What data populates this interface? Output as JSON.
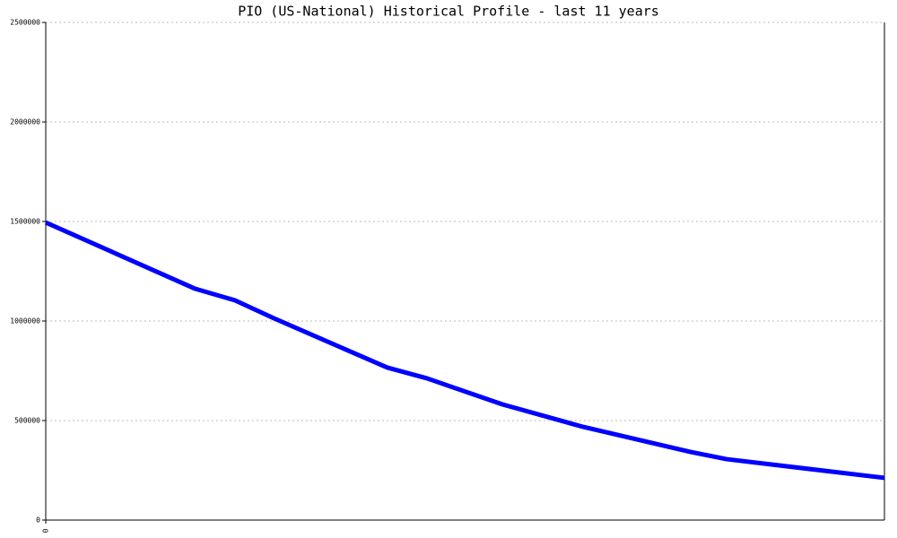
{
  "chart_data": {
    "type": "line",
    "title": "PIO (US-National) Historical Profile - last 11 years",
    "x": [
      0,
      1.96,
      2.48,
      2.99,
      4.48,
      5.0,
      5.99,
      7.05,
      8.46,
      8.93,
      11
    ],
    "series": [
      {
        "color": "#0000ff",
        "values": [
          1495000,
          1162000,
          1104000,
          1014000,
          766000,
          712000,
          581000,
          468000,
          342000,
          306000,
          212000
        ]
      }
    ],
    "xlim": [
      0,
      11
    ],
    "xticks": [
      0
    ],
    "ylim": [
      0,
      2500000
    ],
    "yticks": [
      0,
      500000,
      1000000,
      1500000,
      2000000,
      2500000
    ],
    "grid": true
  }
}
